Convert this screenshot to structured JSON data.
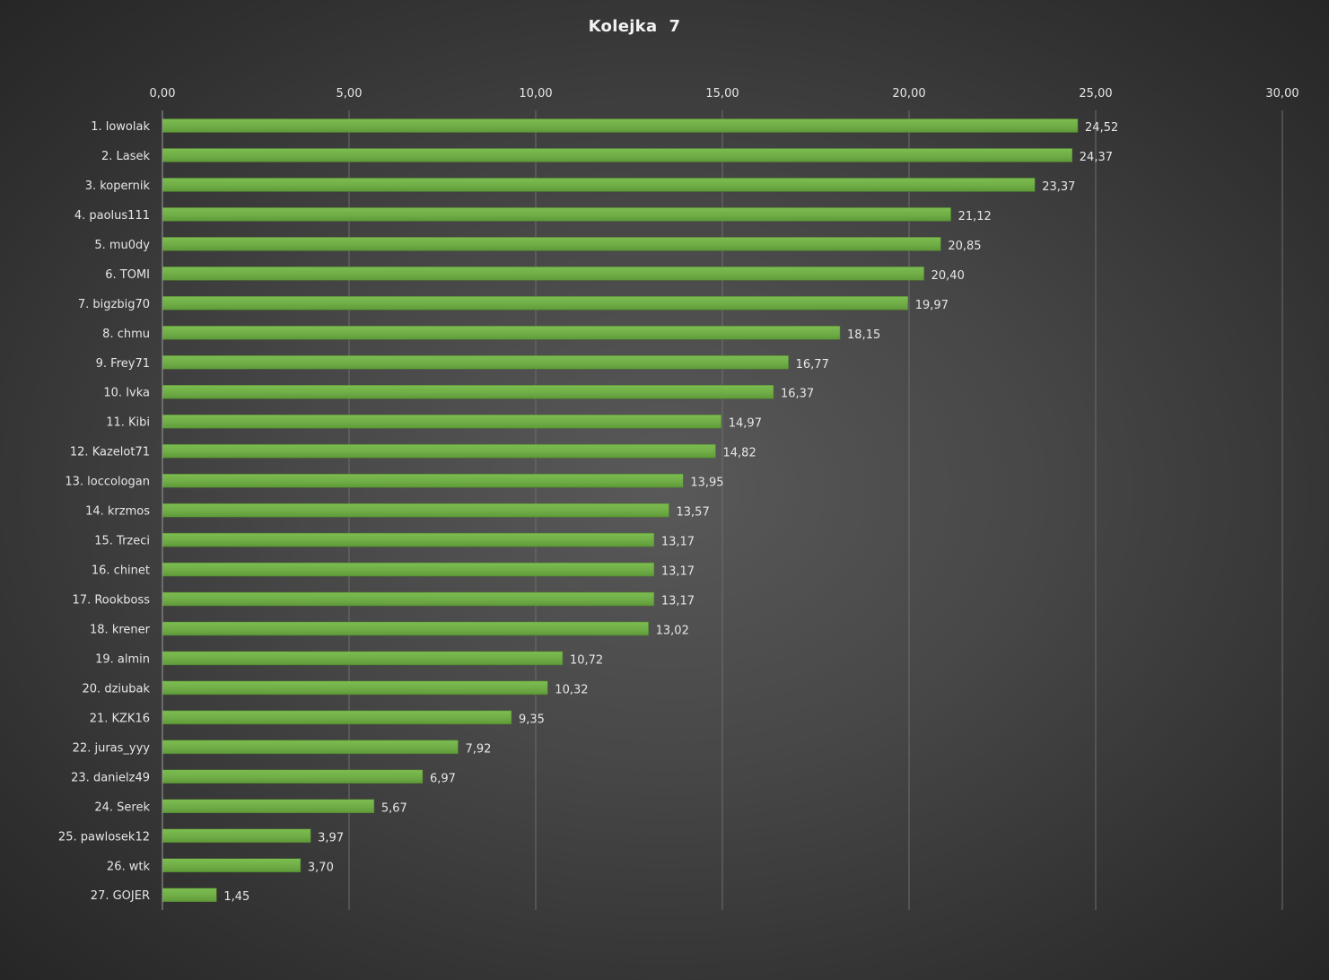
{
  "chart_data": {
    "type": "bar",
    "orientation": "horizontal",
    "title": "Kolejka  7",
    "xlabel": "",
    "ylabel": "",
    "xlim": [
      0,
      30
    ],
    "x_ticks": [
      "0,00",
      "5,00",
      "10,00",
      "15,00",
      "20,00",
      "25,00",
      "30,00"
    ],
    "x_tick_values": [
      0,
      5,
      10,
      15,
      20,
      25,
      30
    ],
    "axis_position": "top",
    "grid": true,
    "legend": false,
    "bar_color": "#70ad47",
    "categories": [
      "1. lowolak",
      "2. Lasek",
      "3. kopernik",
      "4. paolus111",
      "5. mu0dy",
      "6. TOMI",
      "7. bigzbig70",
      "8. chmu",
      "9. Frey71",
      "10. Ivka",
      "11. Kibi",
      "12. Kazelot71",
      "13. loccologan",
      "14. krzmos",
      "15. Trzeci",
      "16. chinet",
      "17. Rookboss",
      "18. krener",
      "19. almin",
      "20. dziubak",
      "21. KZK16",
      "22. juras_yyy",
      "23. danielz49",
      "24. Serek",
      "25. pawlosek12",
      "26. wtk",
      "27. GOJER"
    ],
    "values": [
      24.52,
      24.37,
      23.37,
      21.12,
      20.85,
      20.4,
      19.97,
      18.15,
      16.77,
      16.37,
      14.97,
      14.82,
      13.95,
      13.57,
      13.17,
      13.17,
      13.17,
      13.02,
      10.72,
      10.32,
      9.35,
      7.92,
      6.97,
      5.67,
      3.97,
      3.7,
      1.45
    ],
    "value_labels": [
      "24,52",
      "24,37",
      "23,37",
      "21,12",
      "20,85",
      "20,40",
      "19,97",
      "18,15",
      "16,77",
      "16,37",
      "14,97",
      "14,82",
      "13,95",
      "13,57",
      "13,17",
      "13,17",
      "13,17",
      "13,02",
      "10,72",
      "10,32",
      "9,35",
      "7,92",
      "6,97",
      "5,67",
      "3,97",
      "3,70",
      "1,45"
    ]
  }
}
